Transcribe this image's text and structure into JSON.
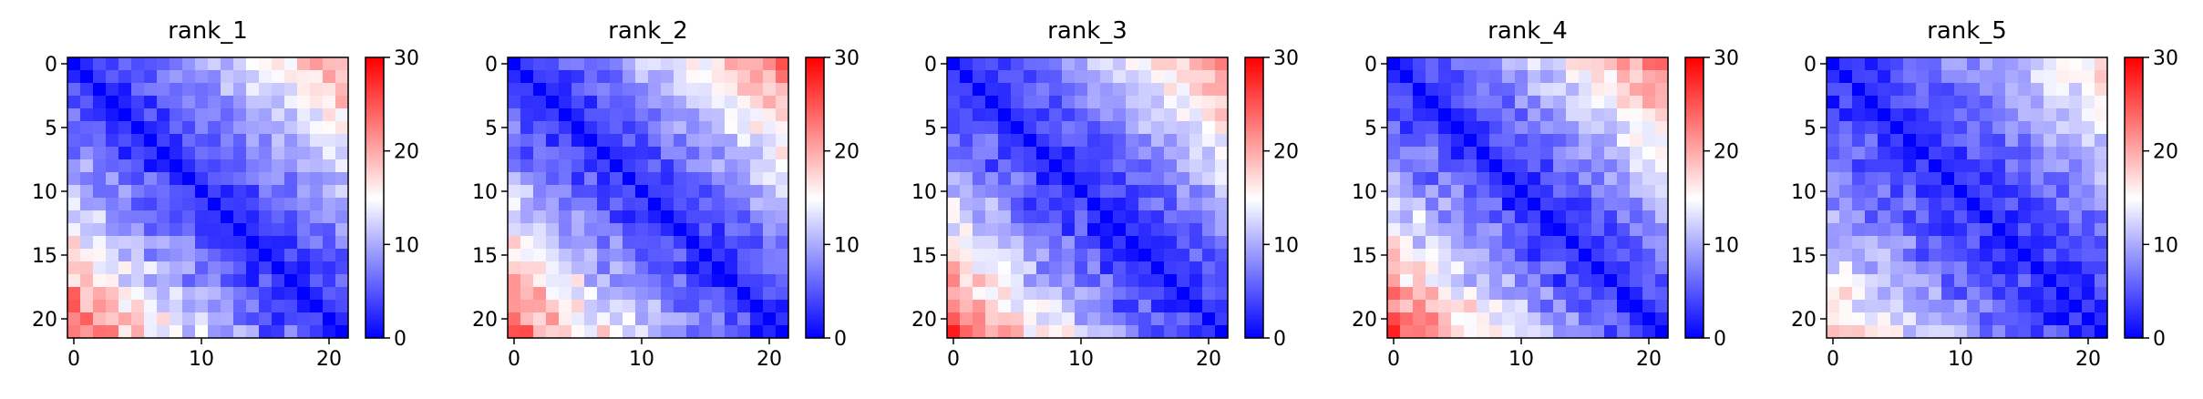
{
  "colors": {
    "low": "#0000ff",
    "mid": "#ffffff",
    "high": "#ff0000",
    "axis": "#000000"
  },
  "chart_data": [
    {
      "type": "heatmap",
      "title": "rank_1",
      "size": 22,
      "xticks": [
        0,
        10,
        20
      ],
      "yticks": [
        0,
        5,
        10,
        15,
        20
      ],
      "colorbar": {
        "min": 0,
        "max": 30,
        "ticks": [
          0,
          10,
          20,
          30
        ],
        "colormap": "bwr"
      },
      "corner_bottom_left": 26,
      "corner_top_right": 21
    },
    {
      "type": "heatmap",
      "title": "rank_2",
      "size": 22,
      "xticks": [
        0,
        10,
        20
      ],
      "yticks": [
        0,
        5,
        10,
        15,
        20
      ],
      "colorbar": {
        "min": 0,
        "max": 30,
        "ticks": [
          0,
          10,
          20,
          30
        ],
        "colormap": "bwr"
      },
      "corner_bottom_left": 24,
      "corner_top_right": 23
    },
    {
      "type": "heatmap",
      "title": "rank_3",
      "size": 22,
      "xticks": [
        0,
        10,
        20
      ],
      "yticks": [
        0,
        5,
        10,
        15,
        20
      ],
      "colorbar": {
        "min": 0,
        "max": 30,
        "ticks": [
          0,
          10,
          20,
          30
        ],
        "colormap": "bwr"
      },
      "corner_bottom_left": 25,
      "corner_top_right": 21
    },
    {
      "type": "heatmap",
      "title": "rank_4",
      "size": 22,
      "xticks": [
        0,
        10,
        20
      ],
      "yticks": [
        0,
        5,
        10,
        15,
        20
      ],
      "colorbar": {
        "min": 0,
        "max": 30,
        "ticks": [
          0,
          10,
          20,
          30
        ],
        "colormap": "bwr"
      },
      "corner_bottom_left": 26,
      "corner_top_right": 23
    },
    {
      "type": "heatmap",
      "title": "rank_5",
      "size": 22,
      "xticks": [
        0,
        10,
        20
      ],
      "yticks": [
        0,
        5,
        10,
        15,
        20
      ],
      "colorbar": {
        "min": 0,
        "max": 30,
        "ticks": [
          0,
          10,
          20,
          30
        ],
        "colormap": "bwr"
      },
      "corner_bottom_left": 18,
      "corner_top_right": 17
    }
  ]
}
